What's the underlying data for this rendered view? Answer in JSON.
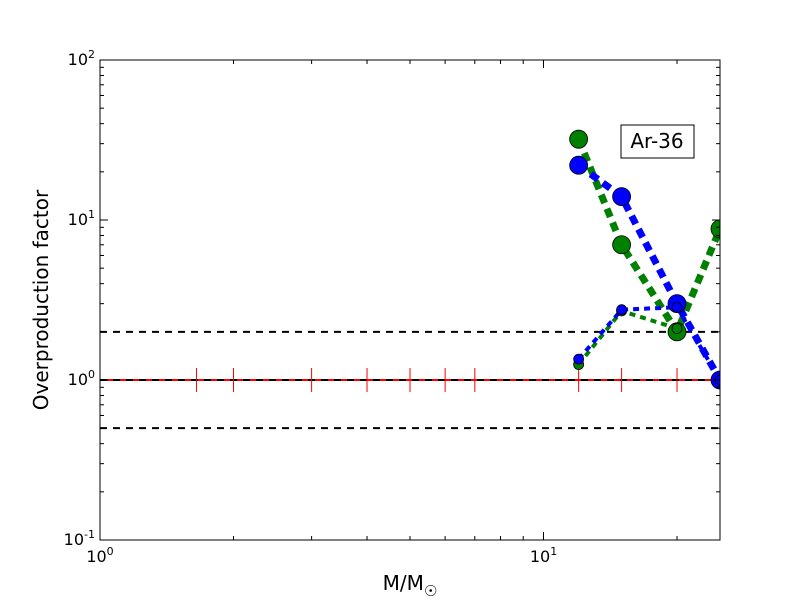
{
  "chart_data": {
    "type": "scatter",
    "xlabel": "M/M",
    "xlabel_sub": "☉",
    "ylabel": "Overproduction factor",
    "xscale": "log",
    "yscale": "log",
    "xlim": [
      1,
      25
    ],
    "ylim": [
      0.1,
      100
    ],
    "x_ticks": [
      {
        "value": 1,
        "base": "10",
        "exp": "0"
      },
      {
        "value": 10,
        "base": "10",
        "exp": "1"
      }
    ],
    "y_ticks": [
      {
        "value": 0.1,
        "base": "10",
        "exp": "-1"
      },
      {
        "value": 1,
        "base": "10",
        "exp": "0"
      },
      {
        "value": 10,
        "base": "10",
        "exp": "1"
      },
      {
        "value": 100,
        "base": "10",
        "exp": "2"
      }
    ],
    "annotation": "Ar-36",
    "reference_lines": [
      {
        "y": 2.0,
        "color": "#000000",
        "style": "dashed"
      },
      {
        "y": 1.0,
        "color": "#ff0000",
        "style": "solid"
      },
      {
        "y": 1.0,
        "color": "#000000",
        "style": "dashed"
      },
      {
        "y": 0.5,
        "color": "#000000",
        "style": "dashed"
      }
    ],
    "red_tick_x": [
      1.65,
      2,
      3,
      4,
      5,
      6,
      7,
      12,
      15,
      20,
      25
    ],
    "series": [
      {
        "color": "#008000",
        "marker": "large",
        "x": [
          12,
          15,
          20,
          25
        ],
        "y": [
          32,
          7,
          2.0,
          8.8
        ]
      },
      {
        "color": "#0000ff",
        "marker": "large",
        "x": [
          12,
          15,
          20,
          25
        ],
        "y": [
          22,
          14,
          3.0,
          1.0
        ]
      },
      {
        "color": "#008000",
        "marker": "small",
        "x": [
          12,
          15,
          20
        ],
        "y": [
          1.25,
          2.7,
          2.1
        ]
      },
      {
        "color": "#0000ff",
        "marker": "small",
        "x": [
          12,
          15,
          20,
          25
        ],
        "y": [
          1.35,
          2.75,
          2.85,
          1.0
        ]
      }
    ]
  }
}
